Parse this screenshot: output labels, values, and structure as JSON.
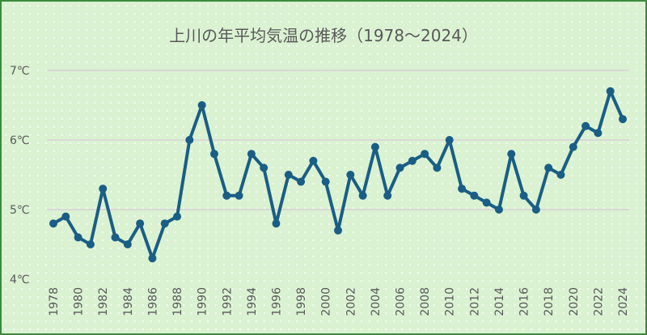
{
  "chart_data": {
    "type": "line",
    "title": "上川の年平均気温の推移（1978～2024）",
    "xlabel": "",
    "ylabel": "",
    "x": [
      1978,
      1979,
      1980,
      1981,
      1982,
      1983,
      1984,
      1985,
      1986,
      1987,
      1988,
      1989,
      1990,
      1991,
      1992,
      1993,
      1994,
      1995,
      1996,
      1997,
      1998,
      1999,
      2000,
      2001,
      2002,
      2003,
      2004,
      2005,
      2006,
      2007,
      2008,
      2009,
      2010,
      2011,
      2012,
      2013,
      2014,
      2015,
      2016,
      2017,
      2018,
      2019,
      2020,
      2021,
      2022,
      2023,
      2024
    ],
    "series": [
      {
        "name": "年平均気温",
        "values": [
          4.8,
          4.9,
          4.6,
          4.5,
          5.3,
          4.6,
          4.5,
          4.8,
          4.3,
          4.8,
          4.9,
          6.0,
          6.5,
          5.8,
          5.2,
          5.2,
          5.8,
          5.6,
          4.8,
          5.5,
          5.4,
          5.7,
          5.4,
          4.7,
          5.5,
          5.2,
          5.9,
          5.2,
          5.6,
          5.7,
          5.8,
          5.6,
          6.0,
          5.3,
          5.2,
          5.1,
          5.0,
          5.8,
          5.2,
          5.0,
          5.6,
          5.5,
          5.9,
          6.2,
          6.1,
          6.7,
          6.3
        ]
      }
    ],
    "ylim": [
      4,
      7
    ],
    "yticks": [
      4,
      5,
      6,
      7
    ],
    "ytick_labels": [
      "4℃",
      "5℃",
      "6℃",
      "7℃"
    ],
    "xtick_labels": [
      "1978",
      "1980",
      "1982",
      "1984",
      "1986",
      "1988",
      "1990",
      "1992",
      "1994",
      "1996",
      "1998",
      "2000",
      "2002",
      "2004",
      "2006",
      "2008",
      "2010",
      "2012",
      "2014",
      "2016",
      "2018",
      "2020",
      "2022",
      "2024"
    ],
    "grid": true,
    "legend": "none",
    "line_color": "#1a5e85",
    "grid_color": "#d9d0d6"
  }
}
